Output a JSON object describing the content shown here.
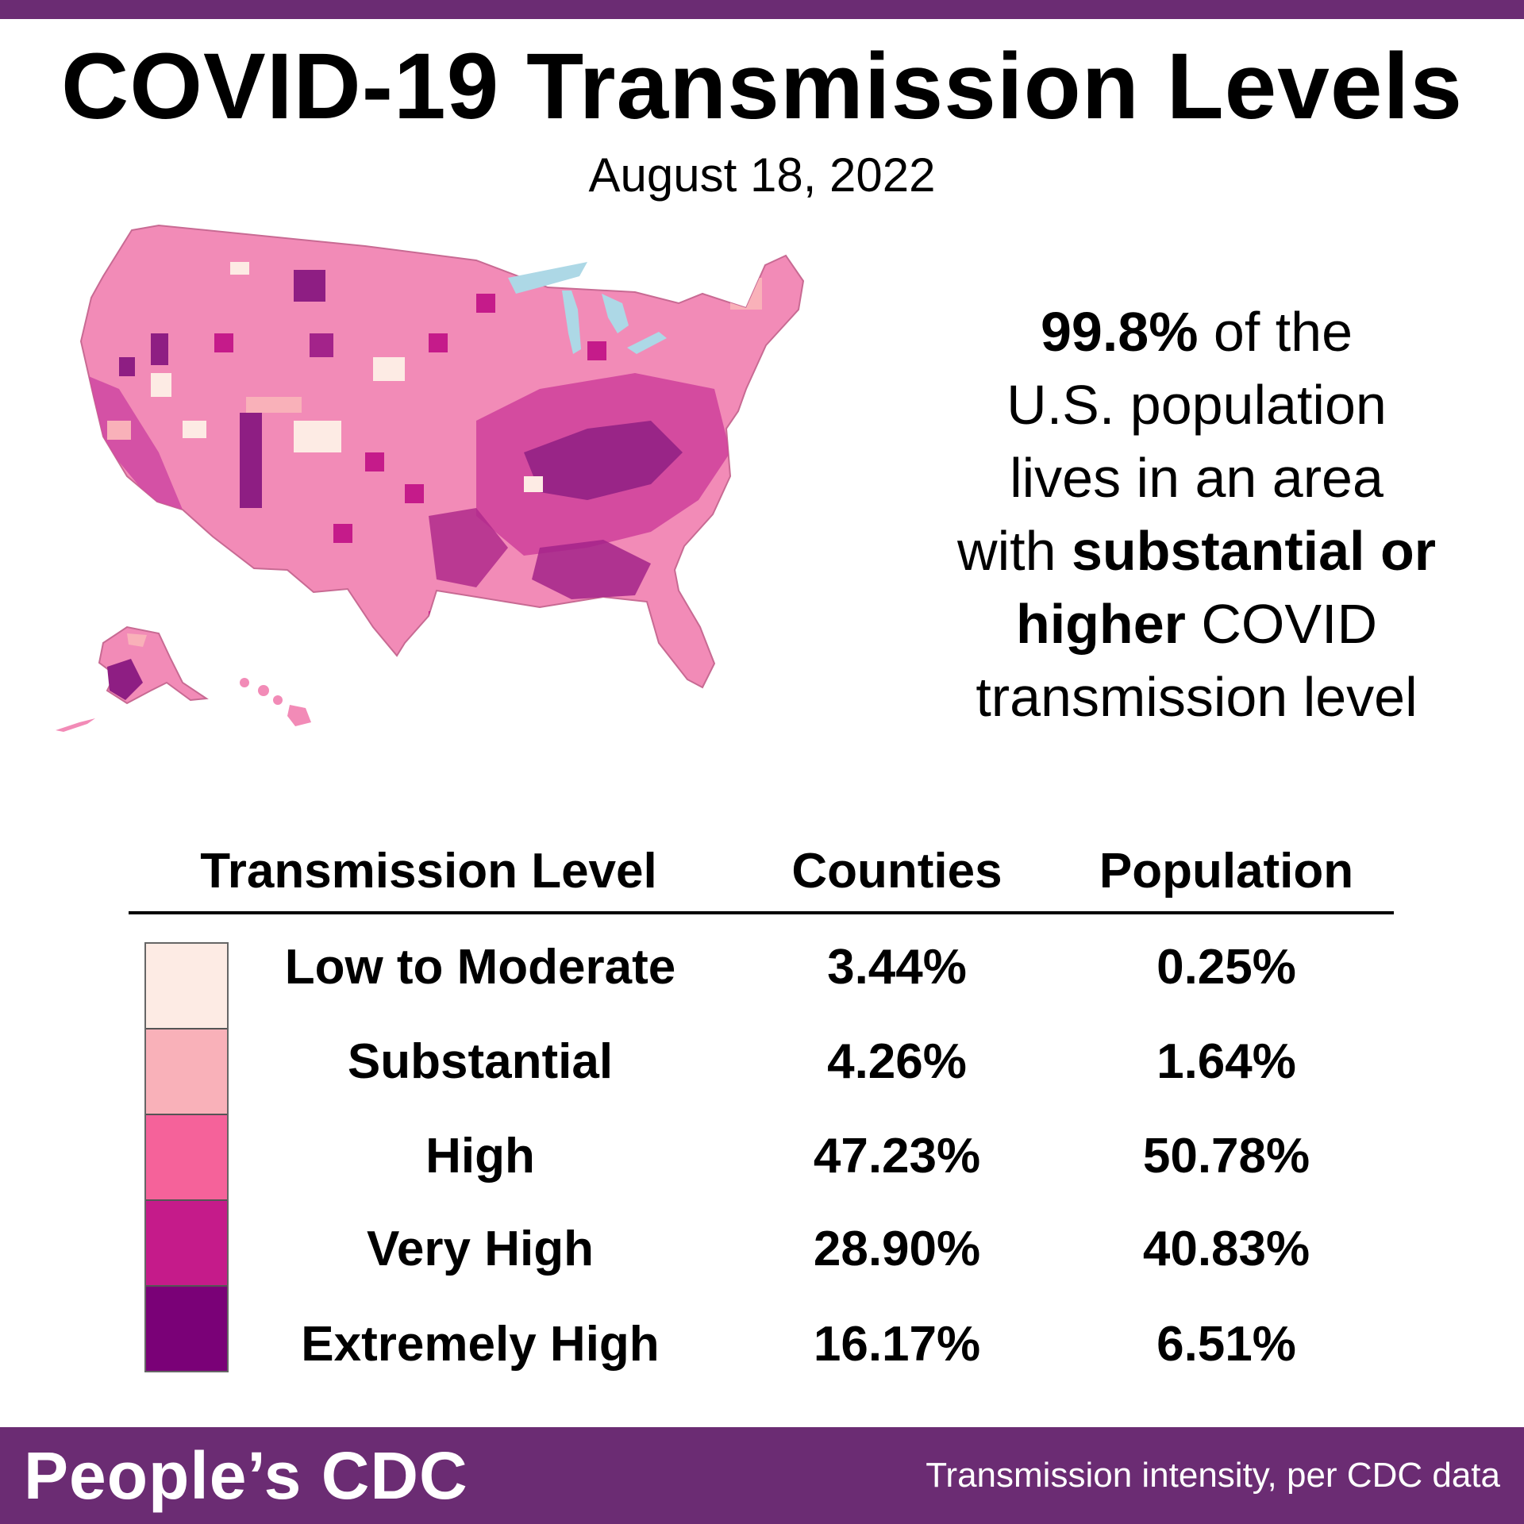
{
  "header": {
    "title": "COVID-19 Transmission Levels",
    "date": "August 18, 2022"
  },
  "callout": {
    "stat": "99.8%",
    "line1_rest": " of the",
    "line2": "U.S. population",
    "line3": "lives in an area",
    "line4_pre": "with ",
    "line4_bold": "substantial or",
    "line5_bold": "higher",
    "line5_rest": " COVID",
    "line6": "transmission level"
  },
  "table": {
    "headers": {
      "level": "Transmission Level",
      "counties": "Counties",
      "population": "Population"
    },
    "rows": [
      {
        "level": "Low to Moderate",
        "counties": "3.44%",
        "population": "0.25%",
        "color": "#fdebe4"
      },
      {
        "level": "Substantial",
        "counties": "4.26%",
        "population": "1.64%",
        "color": "#f9b1b9"
      },
      {
        "level": "High",
        "counties": "47.23%",
        "population": "50.78%",
        "color": "#f5629a"
      },
      {
        "level": "Very High",
        "counties": "28.90%",
        "population": "40.83%",
        "color": "#c51b8a"
      },
      {
        "level": "Extremely High",
        "counties": "16.17%",
        "population": "6.51%",
        "color": "#7a0177"
      }
    ]
  },
  "footer": {
    "brand": "People’s CDC",
    "note": "Transmission intensity, per CDC data"
  },
  "colors": {
    "brand_purple": "#6b2c73",
    "water": "#add8e6"
  }
}
